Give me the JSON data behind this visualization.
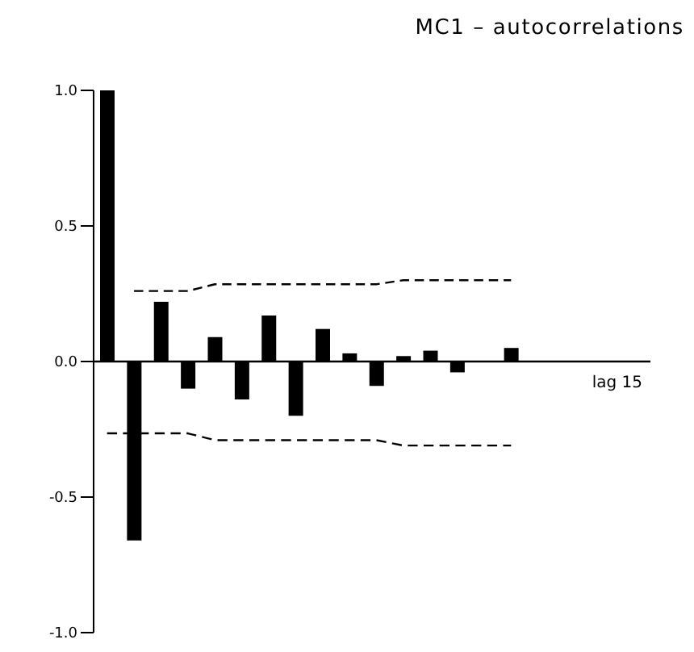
{
  "chart_data": {
    "type": "bar",
    "title": "MC1 – autocorrelations",
    "categories": [
      null,
      null,
      null,
      null,
      null,
      null,
      null,
      null,
      null,
      null,
      null,
      null,
      null,
      null,
      null,
      null
    ],
    "tick_labels": "y",
    "ylim": [
      -1,
      1
    ],
    "yticks": [
      {
        "value": -1,
        "label": "-1.0"
      },
      {
        "value": -0.5,
        "label": "-0.5"
      },
      {
        "value": 0,
        "label": "0.0"
      },
      {
        "value": 0.5,
        "label": "0.5"
      },
      {
        "value": 1,
        "label": "1.0"
      }
    ],
    "grid": false,
    "legend": false,
    "ref_lines": [
      {
        "axis": "y",
        "value": 0,
        "color": "#000000",
        "line_style": "solid"
      }
    ],
    "series": [
      {
        "color": "#000000",
        "values": [
          1.0,
          -0.66,
          0.22,
          -0.1,
          0.09,
          -0.14,
          0.17,
          -0.2,
          0.12,
          0.03,
          -0.09,
          0.02,
          0.04,
          -0.04,
          null,
          0.05
        ]
      },
      {
        "type": "line",
        "color": "#000000",
        "line_style": "dashed",
        "marker": "none",
        "values": [
          null,
          0.26,
          0.26,
          0.26,
          0.285,
          0.285,
          0.285,
          0.285,
          0.285,
          0.285,
          0.285,
          0.3,
          0.3,
          0.3,
          0.3,
          0.3
        ]
      },
      {
        "type": "line",
        "color": "#000000",
        "line_style": "dashed",
        "marker": "none",
        "values": [
          -0.265,
          -0.265,
          -0.265,
          -0.265,
          -0.29,
          -0.29,
          -0.29,
          -0.29,
          -0.29,
          -0.29,
          -0.29,
          -0.31,
          -0.31,
          -0.31,
          -0.31,
          -0.31
        ]
      }
    ],
    "annotations": [
      "lag 15"
    ]
  }
}
